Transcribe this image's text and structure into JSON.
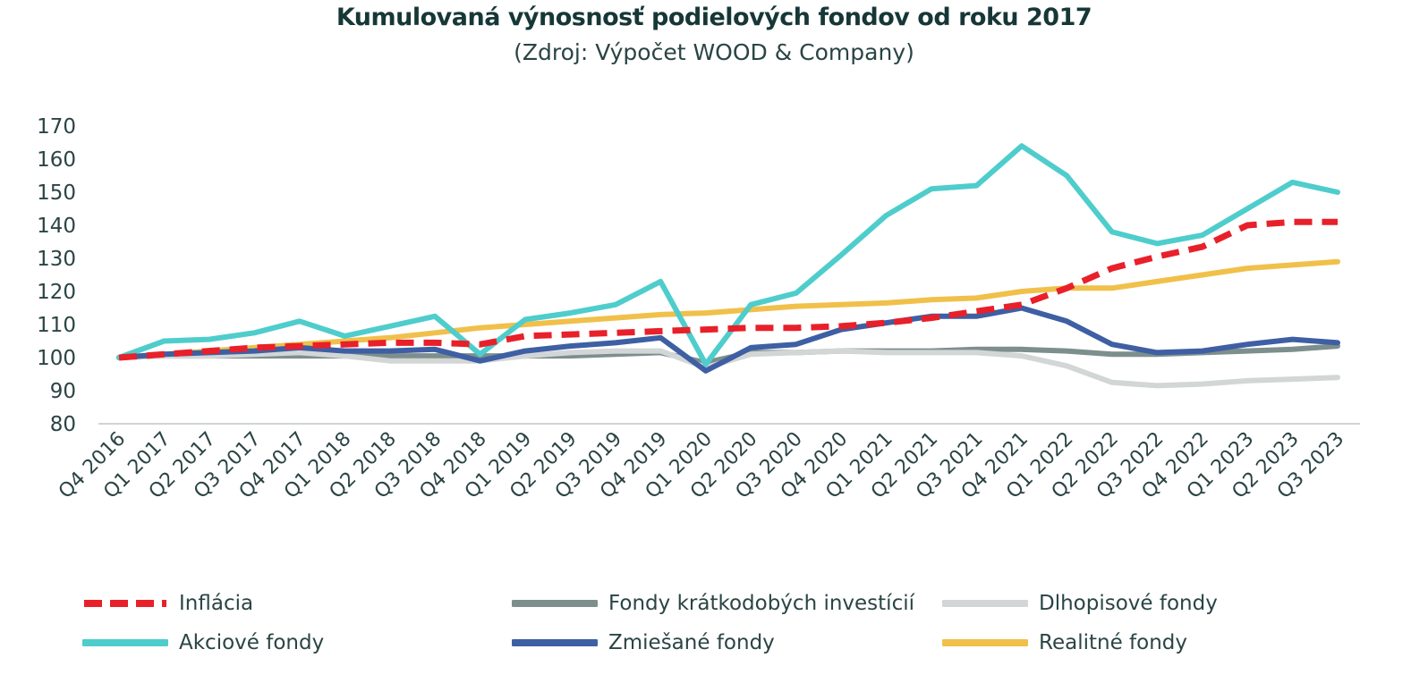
{
  "chart_data": {
    "type": "line",
    "title": "Kumulovaná výnosnosť podielových fondov od roku 2017",
    "subtitle": "(Zdroj: Výpočet WOOD & Company)",
    "xlabel": "",
    "ylabel": "",
    "ylim": [
      80,
      170
    ],
    "yticks": [
      80,
      90,
      100,
      110,
      120,
      130,
      140,
      150,
      160,
      170
    ],
    "grid": false,
    "legend_position": "bottom",
    "categories": [
      "Q4 2016",
      "Q1 2017",
      "Q2 2017",
      "Q3 2017",
      "Q4 2017",
      "Q1 2018",
      "Q2 2018",
      "Q3 2018",
      "Q4 2018",
      "Q1 2019",
      "Q2 2019",
      "Q3 2019",
      "Q4 2019",
      "Q1 2020",
      "Q2 2020",
      "Q3 2020",
      "Q4 2020",
      "Q1 2021",
      "Q2 2021",
      "Q3 2021",
      "Q4 2021",
      "Q1 2022",
      "Q2 2022",
      "Q3 2022",
      "Q4 2022",
      "Q1 2023",
      "Q2 2023",
      "Q3 2023"
    ],
    "series": [
      {
        "name": "Inflácia",
        "color": "#e8202a",
        "dash": true,
        "values": [
          100,
          101,
          102,
          103,
          103.5,
          104,
          104.5,
          104.5,
          104,
          106.5,
          107,
          107.5,
          108,
          108.5,
          109,
          109,
          109.5,
          110.5,
          112,
          114,
          116,
          121,
          127,
          130.5,
          133.5,
          140,
          141,
          141
        ]
      },
      {
        "name": "Fondy krátkodobých investícií",
        "color": "#7d8f8d",
        "dash": false,
        "values": [
          100,
          100.5,
          100.5,
          100.5,
          100.5,
          100.5,
          100.5,
          100.5,
          100.5,
          100.5,
          100.5,
          101,
          101.5,
          98.5,
          101.5,
          101.5,
          102,
          102,
          102,
          102.5,
          102.5,
          102,
          101,
          101,
          101.5,
          102,
          102.5,
          103.5
        ]
      },
      {
        "name": "Dlhopisové fondy",
        "color": "#d3d6d6",
        "dash": false,
        "values": [
          100,
          100.5,
          100.5,
          101,
          101.5,
          100.5,
          99,
          99,
          99,
          100.5,
          101.5,
          102,
          102,
          97,
          101,
          101.5,
          102,
          101.5,
          101.5,
          101.5,
          100.5,
          97.5,
          92.5,
          91.5,
          92,
          93,
          93.5,
          94
        ]
      },
      {
        "name": "Akciové fondy",
        "color": "#4ecdcc",
        "dash": false,
        "values": [
          100,
          105,
          105.5,
          107.5,
          111,
          106.5,
          109.5,
          112.5,
          101,
          111.5,
          113.5,
          116,
          123,
          98,
          116,
          119.5,
          131,
          143,
          151,
          152,
          164,
          155,
          138,
          134.5,
          137,
          145,
          153,
          150
        ]
      },
      {
        "name": "Zmiešané fondy",
        "color": "#3e5fa3",
        "dash": false,
        "values": [
          100,
          101,
          101.5,
          102,
          103,
          102,
          102,
          102.5,
          99,
          102,
          103.5,
          104.5,
          106,
          96,
          103,
          104,
          108.5,
          110.5,
          112.5,
          112.5,
          115,
          111,
          104,
          101.5,
          102,
          104,
          105.5,
          104.5
        ]
      },
      {
        "name": "Realitné fondy",
        "color": "#f0c04a",
        "dash": false,
        "values": [
          100,
          101,
          102,
          103,
          104,
          105,
          106,
          107.5,
          109,
          110,
          111,
          112,
          113,
          113.5,
          114.5,
          115.5,
          116,
          116.5,
          117.5,
          118,
          120,
          121,
          121,
          123,
          125,
          127,
          128,
          129
        ]
      }
    ]
  },
  "legend": {
    "items": [
      {
        "label": "Inflácia"
      },
      {
        "label": "Fondy krátkodobých investícií"
      },
      {
        "label": "Dlhopisové fondy"
      },
      {
        "label": "Akciové fondy"
      },
      {
        "label": "Zmiešané fondy"
      },
      {
        "label": "Realitné fondy"
      }
    ]
  }
}
